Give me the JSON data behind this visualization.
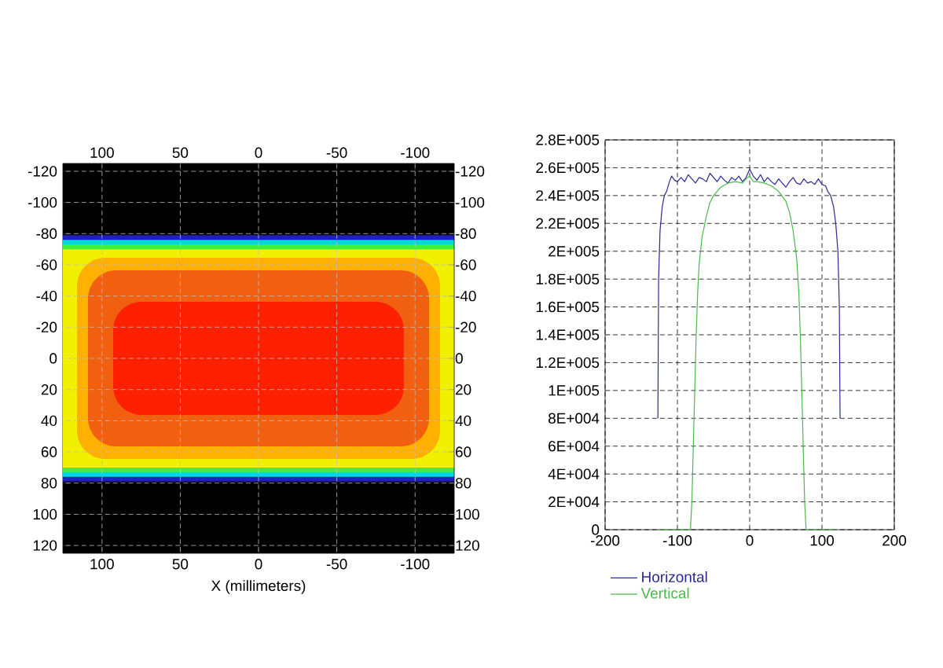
{
  "chart_data": [
    {
      "type": "scatter",
      "bands": [
        {
          "axis": "y",
          "from": -79,
          "to": 79,
          "color": "#2020c0"
        },
        {
          "axis": "y",
          "from": -76,
          "to": 76,
          "color": "#00d8e0"
        },
        {
          "axis": "y",
          "from": -73,
          "to": 73,
          "color": "#40f040"
        },
        {
          "axis": "y",
          "from": -70,
          "to": 70,
          "color": "#f0f000"
        }
      ],
      "xlabel": "X (millimeters)",
      "xlim": [
        125,
        -125
      ],
      "xticks": [
        100,
        50,
        0,
        -50,
        -100
      ],
      "x2lim": [
        125,
        -125
      ],
      "x2ticks": [
        100,
        50,
        0,
        -50,
        -100
      ],
      "ylim": [
        125,
        -125
      ],
      "yticks": [
        -120,
        -100,
        -80,
        -60,
        -40,
        -20,
        0,
        20,
        40,
        60,
        80,
        100,
        120
      ],
      "y2lim": [
        125,
        -125
      ],
      "y2ticks": [
        -120,
        -100,
        -80,
        -60,
        -40,
        -20,
        0,
        20,
        40,
        60,
        80,
        100,
        120
      ],
      "grid": true
    },
    {
      "type": "line",
      "xlim": [
        -200,
        200
      ],
      "xticks": [
        -200,
        -100,
        0,
        100,
        200
      ],
      "ylim": [
        0,
        280000
      ],
      "yticks": [
        0,
        {
          "value": 20000,
          "label": "2E+004"
        },
        {
          "value": 40000,
          "label": "4E+004"
        },
        {
          "value": 60000,
          "label": "6E+004"
        },
        {
          "value": 80000,
          "label": "8E+004"
        },
        {
          "value": 100000,
          "label": "1E+005"
        },
        {
          "value": 120000,
          "label": "1.2E+005"
        },
        {
          "value": 140000,
          "label": "1.4E+005"
        },
        {
          "value": 160000,
          "label": "1.6E+005"
        },
        {
          "value": 180000,
          "label": "1.8E+005"
        },
        {
          "value": 200000,
          "label": "2E+005"
        },
        {
          "value": 220000,
          "label": "2.2E+005"
        },
        {
          "value": 240000,
          "label": "2.4E+005"
        },
        {
          "value": 260000,
          "label": "2.6E+005"
        },
        {
          "value": 280000,
          "label": "2.8E+005"
        }
      ],
      "grid": true,
      "legend": "bottom",
      "series": [
        {
          "name": "Horizontal",
          "color": "#2a2a96",
          "x": [
            -127,
            -126,
            -124,
            -121,
            -118,
            -115,
            -111,
            -108,
            -104,
            -100,
            -95,
            -90,
            -85,
            -80,
            -75,
            -70,
            -65,
            -60,
            -55,
            -50,
            -45,
            -40,
            -35,
            -30,
            -25,
            -20,
            -15,
            -10,
            -5,
            0,
            5,
            10,
            15,
            20,
            25,
            30,
            35,
            40,
            45,
            50,
            55,
            60,
            65,
            70,
            75,
            80,
            85,
            90,
            95,
            100,
            105,
            108,
            112,
            116,
            119,
            122,
            124,
            125
          ],
          "values": [
            80000,
            180000,
            215000,
            232000,
            240000,
            243000,
            250000,
            254000,
            251000,
            250000,
            253000,
            250000,
            255000,
            252000,
            249000,
            253000,
            252000,
            250000,
            256000,
            253000,
            250000,
            254000,
            251000,
            249000,
            253000,
            251000,
            254000,
            250000,
            253000,
            259000,
            254000,
            251000,
            255000,
            250000,
            253000,
            250000,
            248000,
            252000,
            249000,
            246000,
            250000,
            253000,
            249000,
            248000,
            252000,
            249000,
            250000,
            248000,
            252000,
            248000,
            247000,
            243000,
            240000,
            232000,
            220000,
            200000,
            160000,
            80000
          ]
        },
        {
          "name": "Vertical",
          "color": "#4cb84c",
          "x": [
            -127,
            -82,
            -80,
            -78,
            -76,
            -74,
            -72,
            -70,
            -66,
            -60,
            -55,
            -50,
            -40,
            -30,
            -20,
            -10,
            -5,
            0,
            5,
            10,
            20,
            30,
            40,
            50,
            55,
            60,
            65,
            68,
            70,
            72,
            74,
            76,
            78,
            120
          ],
          "values": [
            0,
            0,
            20000,
            60000,
            100000,
            140000,
            170000,
            190000,
            210000,
            225000,
            235000,
            240000,
            246000,
            249000,
            250000,
            249000,
            252000,
            254000,
            250000,
            250000,
            249000,
            247000,
            243000,
            236000,
            228000,
            215000,
            195000,
            170000,
            140000,
            100000,
            60000,
            20000,
            0,
            0
          ]
        }
      ]
    }
  ]
}
